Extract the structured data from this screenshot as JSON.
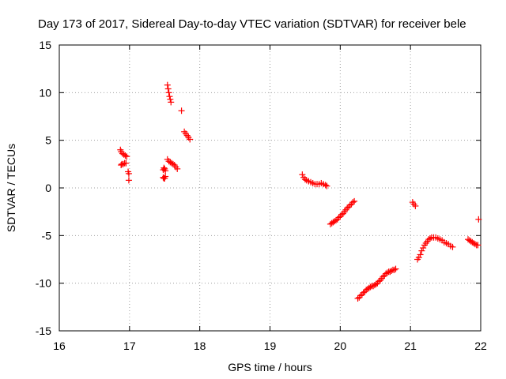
{
  "chart_data": {
    "type": "scatter",
    "title": "Day 173 of 2017, Sidereal Day-to-day VTEC variation (SDTVAR) for receiver bele",
    "xlabel": "GPS time / hours",
    "ylabel": "SDTVAR / TECUs",
    "xlim": [
      16,
      22
    ],
    "ylim": [
      -15,
      15
    ],
    "xticks": [
      "16",
      "17",
      "18",
      "19",
      "20",
      "21",
      "22"
    ],
    "yticks": [
      "-15",
      "-10",
      "-5",
      "0",
      "5",
      "10",
      "15"
    ],
    "grid": true,
    "legend": "none",
    "marker": "+",
    "color": "#ff0000",
    "series": [
      {
        "segments": [
          [
            [
              16.87,
              4.0
            ],
            [
              16.88,
              3.8
            ],
            [
              16.9,
              3.6
            ],
            [
              16.92,
              3.5
            ],
            [
              16.94,
              3.4
            ],
            [
              16.96,
              3.3
            ]
          ],
          [
            [
              16.88,
              2.4
            ],
            [
              16.89,
              2.5
            ],
            [
              16.91,
              2.5
            ],
            [
              16.93,
              2.6
            ],
            [
              16.95,
              2.6
            ]
          ],
          [
            [
              16.98,
              1.7
            ],
            [
              16.99,
              1.5
            ],
            [
              16.99,
              0.8
            ]
          ],
          [
            [
              17.48,
              1.9
            ],
            [
              17.49,
              2.1
            ],
            [
              17.5,
              2.0
            ],
            [
              17.51,
              1.8
            ]
          ],
          [
            [
              17.48,
              1.1
            ],
            [
              17.49,
              1.0
            ],
            [
              17.5,
              1.0
            ],
            [
              17.51,
              1.2
            ]
          ],
          [
            [
              17.54,
              10.8
            ],
            [
              17.55,
              10.4
            ],
            [
              17.56,
              10.0
            ],
            [
              17.57,
              9.6
            ],
            [
              17.58,
              9.3
            ],
            [
              17.59,
              9.0
            ]
          ],
          [
            [
              17.54,
              3.0
            ],
            [
              17.56,
              2.8
            ],
            [
              17.58,
              2.7
            ],
            [
              17.6,
              2.6
            ],
            [
              17.62,
              2.5
            ],
            [
              17.64,
              2.4
            ],
            [
              17.66,
              2.2
            ],
            [
              17.68,
              2.0
            ]
          ],
          [
            [
              17.74,
              8.1
            ]
          ],
          [
            [
              17.78,
              5.9
            ],
            [
              17.8,
              5.7
            ],
            [
              17.82,
              5.5
            ],
            [
              17.84,
              5.3
            ],
            [
              17.86,
              5.1
            ]
          ],
          [
            [
              19.46,
              1.4
            ],
            [
              19.48,
              1.1
            ],
            [
              19.5,
              0.9
            ],
            [
              19.52,
              0.8
            ],
            [
              19.55,
              0.7
            ],
            [
              19.58,
              0.6
            ],
            [
              19.61,
              0.5
            ],
            [
              19.64,
              0.4
            ],
            [
              19.67,
              0.4
            ],
            [
              19.7,
              0.4
            ],
            [
              19.73,
              0.5
            ],
            [
              19.76,
              0.4
            ],
            [
              19.79,
              0.3
            ],
            [
              19.81,
              0.2
            ]
          ],
          [
            [
              19.86,
              -3.8
            ],
            [
              19.88,
              -3.7
            ],
            [
              19.9,
              -3.6
            ],
            [
              19.92,
              -3.5
            ],
            [
              19.94,
              -3.4
            ],
            [
              19.96,
              -3.3
            ],
            [
              19.98,
              -3.1
            ],
            [
              20.0,
              -3.0
            ],
            [
              20.02,
              -2.8
            ],
            [
              20.04,
              -2.7
            ],
            [
              20.06,
              -2.5
            ],
            [
              20.08,
              -2.3
            ],
            [
              20.1,
              -2.1
            ],
            [
              20.12,
              -2.0
            ],
            [
              20.14,
              -1.8
            ],
            [
              20.16,
              -1.7
            ],
            [
              20.18,
              -1.5
            ],
            [
              20.2,
              -1.4
            ]
          ],
          [
            [
              20.25,
              -11.6
            ],
            [
              20.27,
              -11.5
            ],
            [
              20.29,
              -11.3
            ],
            [
              20.31,
              -11.2
            ],
            [
              20.33,
              -11.0
            ],
            [
              20.35,
              -10.9
            ],
            [
              20.37,
              -10.7
            ],
            [
              20.39,
              -10.6
            ],
            [
              20.41,
              -10.5
            ],
            [
              20.43,
              -10.4
            ],
            [
              20.45,
              -10.3
            ],
            [
              20.47,
              -10.3
            ],
            [
              20.49,
              -10.2
            ],
            [
              20.51,
              -10.1
            ],
            [
              20.53,
              -10.0
            ],
            [
              20.55,
              -9.8
            ],
            [
              20.57,
              -9.7
            ],
            [
              20.59,
              -9.5
            ],
            [
              20.61,
              -9.3
            ],
            [
              20.63,
              -9.2
            ],
            [
              20.65,
              -9.0
            ],
            [
              20.67,
              -8.9
            ],
            [
              20.69,
              -8.8
            ],
            [
              20.71,
              -8.8
            ],
            [
              20.73,
              -8.7
            ],
            [
              20.75,
              -8.6
            ],
            [
              20.77,
              -8.6
            ],
            [
              20.79,
              -8.5
            ]
          ],
          [
            [
              21.03,
              -1.5
            ],
            [
              21.05,
              -1.7
            ],
            [
              21.07,
              -1.9
            ]
          ],
          [
            [
              21.1,
              -7.5
            ],
            [
              21.12,
              -7.3
            ],
            [
              21.14,
              -7.0
            ],
            [
              21.16,
              -6.6
            ],
            [
              21.18,
              -6.3
            ],
            [
              21.2,
              -6.0
            ],
            [
              21.22,
              -5.8
            ],
            [
              21.24,
              -5.6
            ],
            [
              21.26,
              -5.4
            ],
            [
              21.28,
              -5.3
            ],
            [
              21.3,
              -5.2
            ],
            [
              21.33,
              -5.2
            ],
            [
              21.36,
              -5.2
            ],
            [
              21.39,
              -5.3
            ],
            [
              21.42,
              -5.4
            ],
            [
              21.45,
              -5.5
            ],
            [
              21.48,
              -5.7
            ],
            [
              21.51,
              -5.8
            ],
            [
              21.54,
              -5.9
            ],
            [
              21.57,
              -6.1
            ],
            [
              21.6,
              -6.2
            ]
          ],
          [
            [
              21.82,
              -5.4
            ],
            [
              21.84,
              -5.5
            ],
            [
              21.86,
              -5.6
            ],
            [
              21.88,
              -5.7
            ],
            [
              21.9,
              -5.8
            ],
            [
              21.92,
              -5.9
            ],
            [
              21.94,
              -6.0
            ],
            [
              21.96,
              -6.0
            ]
          ],
          [
            [
              21.97,
              -3.3
            ]
          ]
        ]
      }
    ]
  }
}
